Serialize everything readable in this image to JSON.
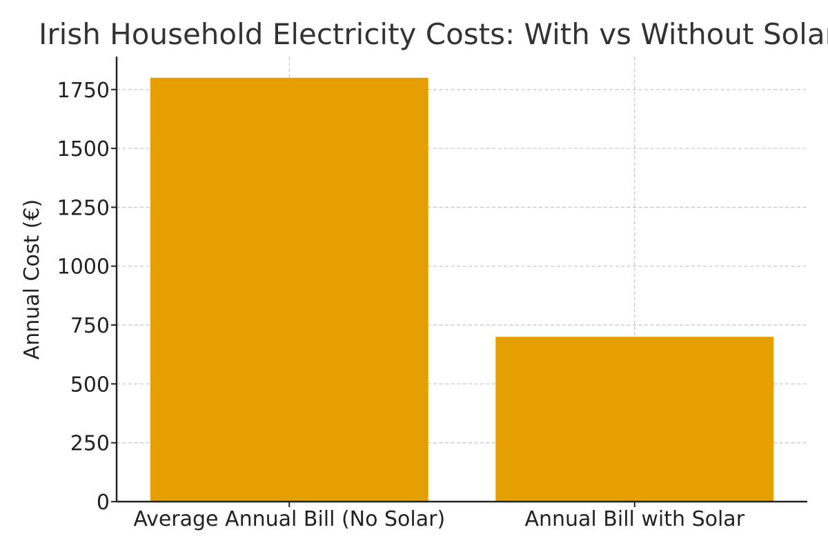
{
  "chart_data": {
    "type": "bar",
    "title": "Irish Household Electricity Costs: With vs Without Solar",
    "xlabel": "",
    "ylabel": "Annual Cost (€)",
    "categories": [
      "Average Annual Bill (No Solar)",
      "Annual Bill with Solar"
    ],
    "values": [
      1800,
      700
    ],
    "ylim": [
      0,
      1890
    ],
    "yticks": [
      0,
      250,
      500,
      750,
      1000,
      1250,
      1500,
      1750
    ],
    "grid": true,
    "bar_color": "#e69f00"
  }
}
